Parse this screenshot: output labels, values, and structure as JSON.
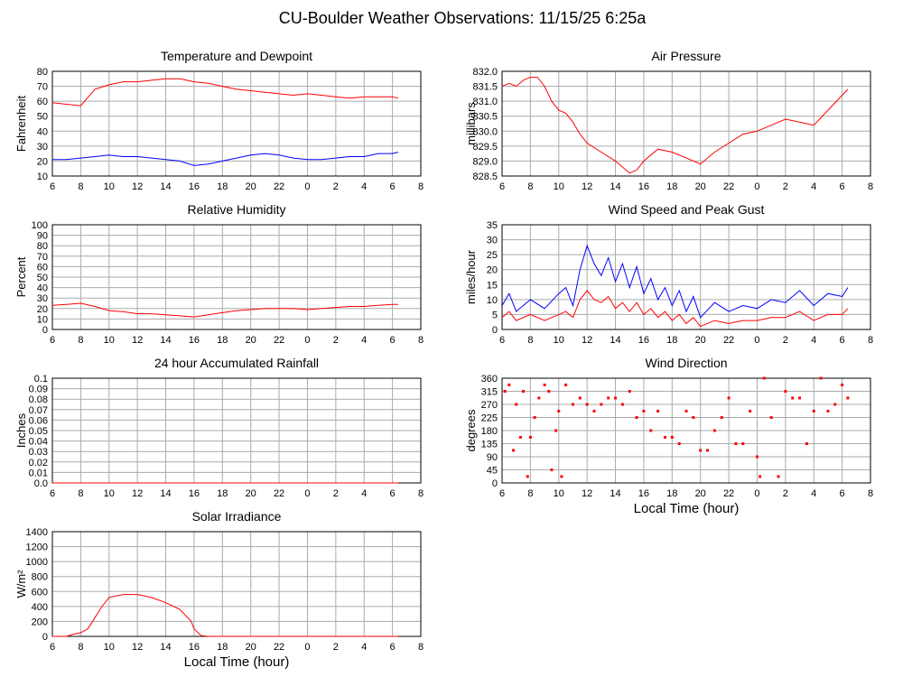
{
  "title": "CU-Boulder Weather Observations: 11/15/25 6:25a",
  "chart_data": [
    {
      "type": "line",
      "title": "Temperature and Dewpoint",
      "ylabel": "Fahrenheit",
      "grid": true,
      "xlim": [
        6,
        32
      ],
      "xticks": [
        6,
        8,
        10,
        12,
        14,
        16,
        18,
        20,
        22,
        {
          "value": 24,
          "label": "0"
        },
        {
          "value": 26,
          "label": "2"
        },
        {
          "value": 28,
          "label": "4"
        },
        {
          "value": 30,
          "label": "6"
        },
        {
          "value": 32,
          "label": "8"
        }
      ],
      "ylim": [
        10,
        80
      ],
      "yticks": [
        10,
        20,
        30,
        40,
        50,
        60,
        70,
        80
      ],
      "x": [
        6,
        7,
        8,
        9,
        10,
        11,
        12,
        13,
        14,
        15,
        16,
        17,
        18,
        19,
        20,
        21,
        22,
        23,
        24,
        25,
        26,
        27,
        28,
        29,
        30,
        30.4
      ],
      "series": [
        {
          "color": "#ff0000",
          "values": [
            59,
            58,
            57,
            68,
            71,
            73,
            73,
            74,
            75,
            75,
            73,
            72,
            70,
            68,
            67,
            66,
            65,
            64,
            65,
            64,
            63,
            62,
            63,
            63,
            63,
            62
          ]
        },
        {
          "color": "#0000ff",
          "values": [
            21,
            21,
            22,
            23,
            24,
            23,
            23,
            22,
            21,
            20,
            17,
            18,
            20,
            22,
            24,
            25,
            24,
            22,
            21,
            21,
            22,
            23,
            23,
            25,
            25,
            26
          ]
        }
      ]
    },
    {
      "type": "line",
      "title": "Air Pressure",
      "ylabel": "millibars",
      "grid": true,
      "xlim": [
        6,
        32
      ],
      "xticks": [
        6,
        8,
        10,
        12,
        14,
        16,
        18,
        20,
        22,
        {
          "value": 24,
          "label": "0"
        },
        {
          "value": 26,
          "label": "2"
        },
        {
          "value": 28,
          "label": "4"
        },
        {
          "value": 30,
          "label": "6"
        },
        {
          "value": 32,
          "label": "8"
        }
      ],
      "ylim": [
        828.5,
        832
      ],
      "yticks": [
        828.5,
        {
          "value": 829,
          "label": "829.0"
        },
        829.5,
        {
          "value": 830,
          "label": "830.0"
        },
        830.5,
        {
          "value": 831,
          "label": "831.0"
        },
        831.5,
        {
          "value": 832,
          "label": "832.0"
        }
      ],
      "x": [
        6,
        6.5,
        7,
        7.5,
        8,
        8.5,
        9,
        9.5,
        10,
        10.5,
        11,
        11.5,
        12,
        13,
        14,
        15,
        15.5,
        16,
        17,
        18,
        19,
        20,
        21,
        22,
        23,
        24,
        25,
        26,
        27,
        28,
        29,
        30,
        30.4
      ],
      "series": [
        {
          "color": "#ff0000",
          "values": [
            831.5,
            831.6,
            831.5,
            831.7,
            831.8,
            831.8,
            831.5,
            831.0,
            830.7,
            830.6,
            830.3,
            829.9,
            829.6,
            829.3,
            829.0,
            828.6,
            828.7,
            829.0,
            829.4,
            829.3,
            829.1,
            828.9,
            829.3,
            829.6,
            829.9,
            830.0,
            830.2,
            830.4,
            830.3,
            830.2,
            830.7,
            831.2,
            831.4
          ]
        }
      ]
    },
    {
      "type": "line",
      "title": "Relative Humidity",
      "ylabel": "Percent",
      "grid": true,
      "xlim": [
        6,
        32
      ],
      "xticks": [
        6,
        8,
        10,
        12,
        14,
        16,
        18,
        20,
        22,
        {
          "value": 24,
          "label": "0"
        },
        {
          "value": 26,
          "label": "2"
        },
        {
          "value": 28,
          "label": "4"
        },
        {
          "value": 30,
          "label": "6"
        },
        {
          "value": 32,
          "label": "8"
        }
      ],
      "ylim": [
        0,
        100
      ],
      "yticks": [
        0,
        10,
        20,
        30,
        40,
        50,
        60,
        70,
        80,
        90,
        100
      ],
      "x": [
        6,
        7,
        8,
        9,
        10,
        11,
        12,
        13,
        14,
        15,
        16,
        17,
        18,
        19,
        20,
        21,
        22,
        23,
        24,
        25,
        26,
        27,
        28,
        29,
        30,
        30.4
      ],
      "series": [
        {
          "color": "#ff0000",
          "values": [
            23,
            24,
            25,
            22,
            18,
            17,
            15,
            15,
            14,
            13,
            12,
            14,
            16,
            18,
            19,
            20,
            20,
            20,
            19,
            20,
            21,
            22,
            22,
            23,
            24,
            24
          ]
        }
      ]
    },
    {
      "type": "line",
      "title": "Wind Speed and Peak Gust",
      "ylabel": "miles/hour",
      "grid": true,
      "xlim": [
        6,
        32
      ],
      "xticks": [
        6,
        8,
        10,
        12,
        14,
        16,
        18,
        20,
        22,
        {
          "value": 24,
          "label": "0"
        },
        {
          "value": 26,
          "label": "2"
        },
        {
          "value": 28,
          "label": "4"
        },
        {
          "value": 30,
          "label": "6"
        },
        {
          "value": 32,
          "label": "8"
        }
      ],
      "ylim": [
        0,
        35
      ],
      "yticks": [
        0,
        5,
        10,
        15,
        20,
        25,
        30,
        35
      ],
      "x": [
        6,
        6.5,
        7,
        8,
        9,
        10,
        10.5,
        11,
        11.5,
        12,
        12.5,
        13,
        13.5,
        14,
        14.5,
        15,
        15.5,
        16,
        16.5,
        17,
        17.5,
        18,
        18.5,
        19,
        19.5,
        20,
        21,
        22,
        23,
        24,
        25,
        26,
        27,
        28,
        29,
        30,
        30.4
      ],
      "series": [
        {
          "color": "#0000ff",
          "values": [
            8,
            12,
            6,
            10,
            7,
            12,
            14,
            8,
            20,
            28,
            22,
            18,
            24,
            16,
            22,
            14,
            21,
            12,
            17,
            10,
            14,
            8,
            13,
            6,
            11,
            4,
            9,
            6,
            8,
            7,
            10,
            9,
            13,
            8,
            12,
            11,
            14
          ]
        },
        {
          "color": "#ff0000",
          "values": [
            4,
            6,
            3,
            5,
            3,
            5,
            6,
            4,
            10,
            13,
            10,
            9,
            11,
            7,
            9,
            6,
            9,
            5,
            7,
            4,
            6,
            3,
            5,
            2,
            4,
            1,
            3,
            2,
            3,
            3,
            4,
            4,
            6,
            3,
            5,
            5,
            7
          ]
        }
      ]
    },
    {
      "type": "line",
      "title": "24 hour Accumulated Rainfall",
      "ylabel": "Inches",
      "grid": true,
      "xlim": [
        6,
        32
      ],
      "xticks": [
        6,
        8,
        10,
        12,
        14,
        16,
        18,
        20,
        22,
        {
          "value": 24,
          "label": "0"
        },
        {
          "value": 26,
          "label": "2"
        },
        {
          "value": 28,
          "label": "4"
        },
        {
          "value": 30,
          "label": "6"
        },
        {
          "value": 32,
          "label": "8"
        }
      ],
      "ylim": [
        0,
        0.1
      ],
      "yticks": [
        {
          "value": 0,
          "label": "0.0"
        },
        0.01,
        0.02,
        0.03,
        0.04,
        0.05,
        0.06,
        0.07,
        0.08,
        0.09,
        0.1
      ],
      "x": [
        6,
        30.4
      ],
      "series": [
        {
          "color": "#ff0000",
          "values": [
            0,
            0
          ]
        }
      ]
    },
    {
      "type": "scatter",
      "title": "Wind Direction",
      "ylabel": "degrees",
      "xlabel": "Local Time (hour)",
      "grid": true,
      "xlim": [
        6,
        32
      ],
      "xticks": [
        6,
        8,
        10,
        12,
        14,
        16,
        18,
        20,
        22,
        {
          "value": 24,
          "label": "0"
        },
        {
          "value": 26,
          "label": "2"
        },
        {
          "value": 28,
          "label": "4"
        },
        {
          "value": 30,
          "label": "6"
        },
        {
          "value": 32,
          "label": "8"
        }
      ],
      "ylim": [
        0,
        360
      ],
      "yticks": [
        0,
        45,
        90,
        135,
        180,
        225,
        270,
        315,
        360
      ],
      "x": [
        6.2,
        6.5,
        6.8,
        7,
        7.3,
        7.5,
        7.8,
        8,
        8.3,
        8.6,
        9,
        9.3,
        9.5,
        9.8,
        10,
        10.2,
        10.5,
        11,
        11.5,
        12,
        12.5,
        13,
        13.5,
        14,
        14.5,
        15,
        15.5,
        16,
        16.5,
        17,
        17.5,
        18,
        18.5,
        19,
        19.5,
        20,
        20.5,
        21,
        21.5,
        22,
        22.5,
        23,
        23.5,
        24,
        24.2,
        24.5,
        25,
        25.5,
        26,
        26.5,
        27,
        27.5,
        28,
        28.5,
        29,
        29.5,
        30,
        30.4
      ],
      "series": [
        {
          "color": "#ff0000",
          "values": [
            315,
            337,
            112,
            270,
            157,
            315,
            22,
            157,
            225,
            292,
            337,
            315,
            45,
            180,
            247,
            22,
            337,
            270,
            292,
            270,
            247,
            270,
            292,
            292,
            270,
            315,
            225,
            247,
            180,
            247,
            157,
            157,
            135,
            247,
            225,
            112,
            112,
            180,
            225,
            292,
            135,
            135,
            247,
            90,
            22,
            360,
            225,
            22,
            315,
            292,
            292,
            135,
            247,
            360,
            247,
            270,
            337,
            292
          ]
        }
      ]
    },
    {
      "type": "line",
      "title": "Solar Irradiance",
      "ylabel": "W/m²",
      "xlabel": "Local Time (hour)",
      "grid": true,
      "xlim": [
        6,
        32
      ],
      "xticks": [
        6,
        8,
        10,
        12,
        14,
        16,
        18,
        20,
        22,
        {
          "value": 24,
          "label": "0"
        },
        {
          "value": 26,
          "label": "2"
        },
        {
          "value": 28,
          "label": "4"
        },
        {
          "value": 30,
          "label": "6"
        },
        {
          "value": 32,
          "label": "8"
        }
      ],
      "ylim": [
        0,
        1400
      ],
      "yticks": [
        0,
        200,
        400,
        600,
        800,
        1000,
        1200,
        1400
      ],
      "x": [
        6,
        7,
        7.5,
        8,
        8.5,
        9,
        9.5,
        10,
        10.5,
        11,
        12,
        13,
        14,
        15,
        15.8,
        16,
        16.5,
        17,
        20,
        24,
        28,
        30.4
      ],
      "series": [
        {
          "color": "#ff0000",
          "values": [
            0,
            0,
            30,
            50,
            100,
            250,
            400,
            520,
            540,
            560,
            560,
            520,
            450,
            360,
            200,
            100,
            10,
            0,
            0,
            0,
            0,
            0
          ]
        }
      ]
    }
  ]
}
